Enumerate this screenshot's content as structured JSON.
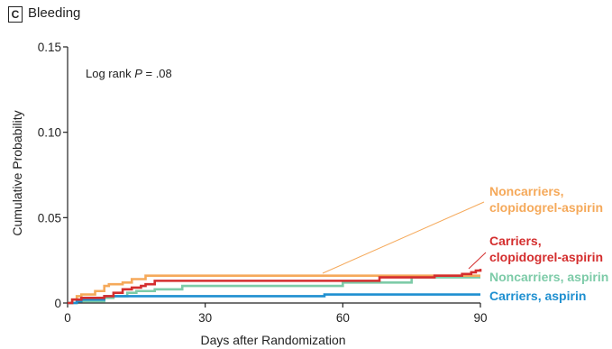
{
  "panel": {
    "letter": "C",
    "title": "Bleeding"
  },
  "chart_data": {
    "type": "line",
    "title": "Bleeding",
    "xlabel": "Days after Randomization",
    "ylabel": "Cumulative Probability",
    "xlim": [
      0,
      90
    ],
    "ylim": [
      0,
      0.15
    ],
    "xticks": [
      0,
      30,
      60,
      90
    ],
    "yticks": [
      0,
      0.05,
      0.1,
      0.15
    ],
    "ytick_labels": [
      "0",
      "0.05",
      "0.10",
      "0.15"
    ],
    "annotation": {
      "prefix": "Log rank ",
      "italic": "P",
      "suffix": " = .08"
    },
    "series": [
      {
        "name": "Noncarriers, clopidogrel-aspirin",
        "label_lines": [
          "Noncarriers,",
          "clopidogrel-aspirin"
        ],
        "color": "#f5a95a",
        "x": [
          0,
          1,
          2,
          3,
          6,
          8,
          9,
          12,
          14,
          17,
          60,
          90
        ],
        "y": [
          0,
          0.002,
          0.004,
          0.005,
          0.007,
          0.01,
          0.011,
          0.012,
          0.014,
          0.016,
          0.016,
          0.016
        ]
      },
      {
        "name": "Carriers, clopidogrel-aspirin",
        "label_lines": [
          "Carriers,",
          "clopidogrel-aspirin"
        ],
        "color": "#d42e2e",
        "x": [
          0,
          1,
          3,
          8,
          10,
          12,
          14,
          16,
          17,
          19,
          48,
          60,
          68,
          80,
          86,
          88,
          89,
          90
        ],
        "y": [
          0,
          0.002,
          0.003,
          0.004,
          0.006,
          0.008,
          0.009,
          0.01,
          0.011,
          0.013,
          0.013,
          0.013,
          0.015,
          0.016,
          0.017,
          0.018,
          0.019,
          0.02
        ]
      },
      {
        "name": "Noncarriers, aspirin",
        "label_lines": [
          "Noncarriers, aspirin"
        ],
        "color": "#7dcba8",
        "x": [
          0,
          2,
          5,
          8,
          10,
          13,
          15,
          19,
          25,
          60,
          75,
          90
        ],
        "y": [
          0,
          0.001,
          0.001,
          0.003,
          0.004,
          0.006,
          0.007,
          0.008,
          0.01,
          0.012,
          0.015,
          0.015
        ]
      },
      {
        "name": "Carriers, aspirin",
        "label_lines": [
          "Carriers, aspirin"
        ],
        "color": "#1e8fd0",
        "x": [
          0,
          2,
          3,
          8,
          56,
          90
        ],
        "y": [
          0,
          0.001,
          0.002,
          0.004,
          0.005,
          0.005
        ]
      }
    ]
  }
}
